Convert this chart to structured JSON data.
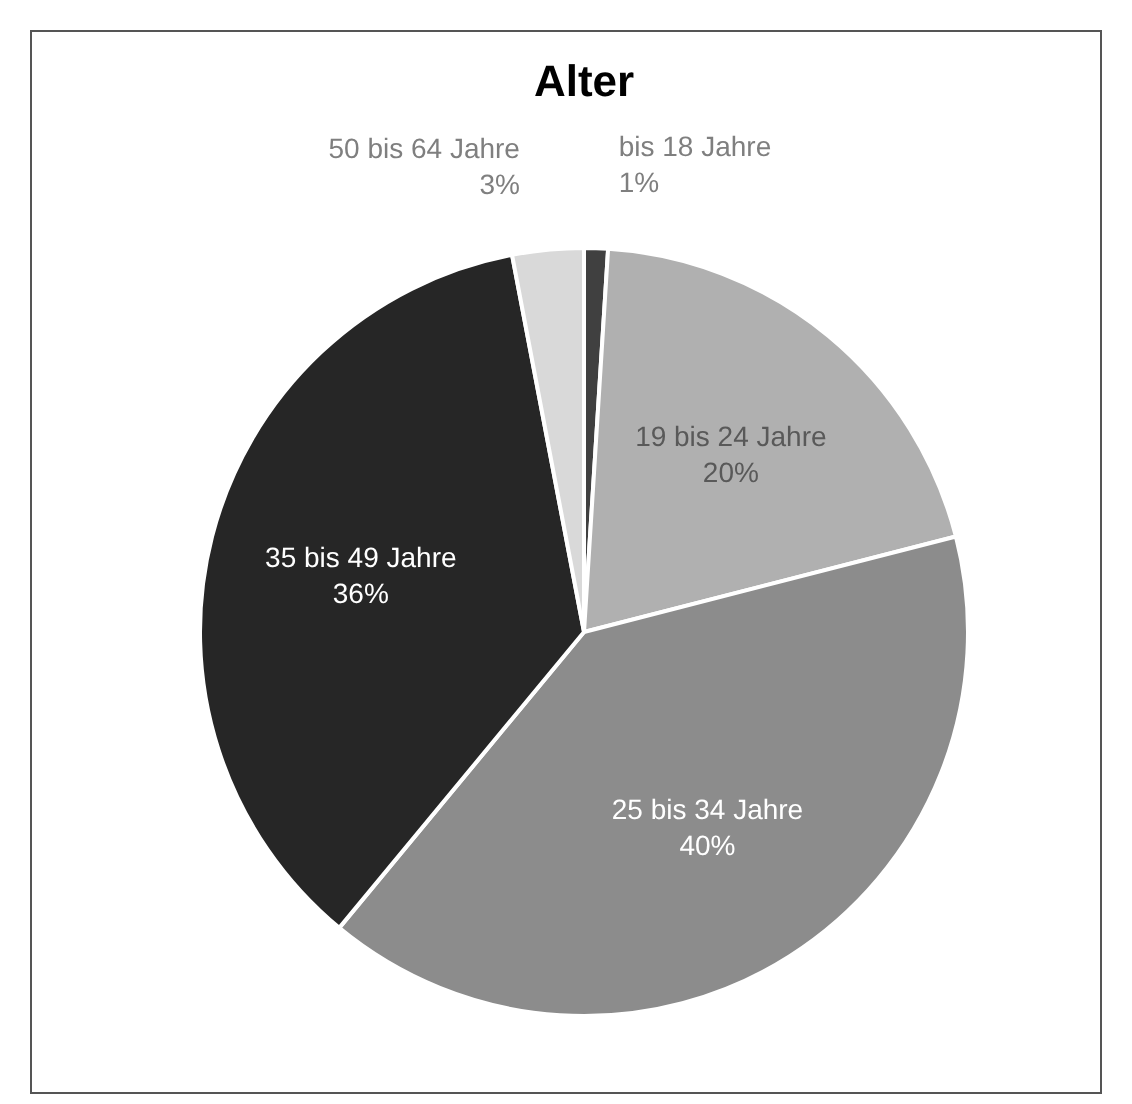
{
  "chart_data": {
    "type": "pie",
    "title": "Alter",
    "categories": [
      "bis 18 Jahre",
      "19 bis 24 Jahre",
      "25 bis 34 Jahre",
      "35 bis 49 Jahre",
      "50 bis 64 Jahre"
    ],
    "values": [
      1,
      20,
      40,
      36,
      3
    ],
    "value_labels": [
      "1%",
      "20%",
      "40%",
      "36%",
      "3%"
    ],
    "colors": [
      "#404040",
      "#b0b0b0",
      "#8c8c8c",
      "#262626",
      "#d9d9d9"
    ]
  }
}
